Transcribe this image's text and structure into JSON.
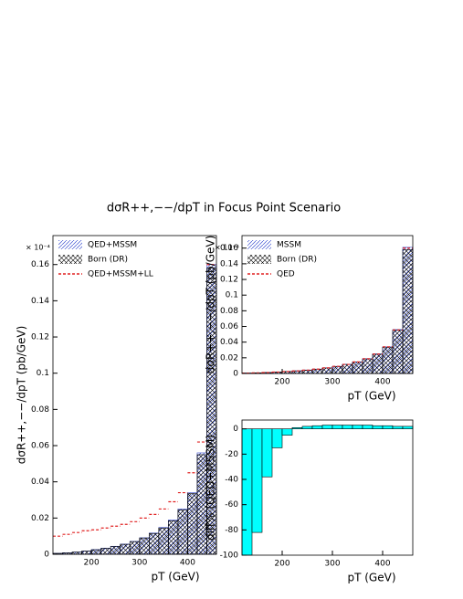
{
  "title": "dσR++,−−/dpT in Focus Point Scenario",
  "chart_data": [
    {
      "type": "histogram",
      "y_label": "dσR++,−−/dpT (pb/GeV)",
      "x_label": "pT (GeV)",
      "exponent_label": "× 10⁻⁴",
      "bins": [
        120,
        140,
        160,
        180,
        200,
        220,
        240,
        260,
        280,
        300,
        320,
        340,
        360,
        380,
        400,
        420,
        440,
        460
      ],
      "xlim": [
        120,
        460
      ],
      "xticks": [
        200,
        300,
        400
      ],
      "ylim": [
        0,
        0.176
      ],
      "yticks": [
        0,
        0.02,
        0.04,
        0.06,
        0.08,
        0.1,
        0.12,
        0.14,
        0.16
      ],
      "series": [
        {
          "name": "QED+MSSM",
          "style": "hatch",
          "color": "#3b4fd0",
          "values": [
            0.0005,
            0.0008,
            0.0012,
            0.0018,
            0.0026,
            0.0034,
            0.0044,
            0.0056,
            0.0071,
            0.0091,
            0.0117,
            0.0148,
            0.0189,
            0.025,
            0.034,
            0.056,
            0.16
          ]
        },
        {
          "name": "Born (DR)",
          "style": "crosshatch",
          "color": "#000000",
          "values": [
            0.0005,
            0.0008,
            0.0012,
            0.0018,
            0.0025,
            0.0033,
            0.0043,
            0.0055,
            0.007,
            0.009,
            0.0115,
            0.0145,
            0.0185,
            0.0245,
            0.0335,
            0.055,
            0.158
          ]
        },
        {
          "name": "QED+MSSM+LL",
          "style": "dashed-line",
          "color": "#e02020",
          "values": [
            0.01,
            0.011,
            0.012,
            0.013,
            0.0135,
            0.0145,
            0.0155,
            0.0165,
            0.018,
            0.02,
            0.022,
            0.025,
            0.029,
            0.034,
            0.045,
            0.062,
            0.16
          ]
        }
      ]
    },
    {
      "type": "histogram",
      "y_label": "dσR++,−−/dpT (pb/GeV)",
      "x_label": "pT (GeV)",
      "exponent_label": "× 10⁻⁴",
      "bins": [
        120,
        140,
        160,
        180,
        200,
        220,
        240,
        260,
        280,
        300,
        320,
        340,
        360,
        380,
        400,
        420,
        440,
        460
      ],
      "xlim": [
        120,
        460
      ],
      "xticks": [
        200,
        300,
        400
      ],
      "ylim": [
        0,
        0.176
      ],
      "yticks": [
        0,
        0.02,
        0.04,
        0.06,
        0.08,
        0.1,
        0.12,
        0.14,
        0.16
      ],
      "series": [
        {
          "name": "MSSM",
          "style": "hatch",
          "color": "#3b4fd0",
          "values": [
            0.0005,
            0.0008,
            0.0012,
            0.0018,
            0.0026,
            0.0034,
            0.0044,
            0.0056,
            0.0071,
            0.0091,
            0.0117,
            0.0148,
            0.0189,
            0.025,
            0.034,
            0.056,
            0.161
          ]
        },
        {
          "name": "Born (DR)",
          "style": "crosshatch",
          "color": "#000000",
          "values": [
            0.0005,
            0.0008,
            0.0012,
            0.0018,
            0.0025,
            0.0033,
            0.0043,
            0.0055,
            0.007,
            0.009,
            0.0115,
            0.0145,
            0.0185,
            0.0245,
            0.0335,
            0.055,
            0.158
          ]
        },
        {
          "name": "QED",
          "style": "dashed-line",
          "color": "#e02020",
          "values": [
            0.0005,
            0.0008,
            0.0012,
            0.0018,
            0.0025,
            0.0033,
            0.0043,
            0.0055,
            0.0071,
            0.0091,
            0.0116,
            0.0147,
            0.0188,
            0.0248,
            0.034,
            0.0556,
            0.16
          ]
        }
      ]
    },
    {
      "type": "histogram",
      "y_label": "diff% (QED+MSSM)",
      "x_label": "pT (GeV)",
      "bins": [
        120,
        140,
        160,
        180,
        200,
        220,
        240,
        260,
        280,
        300,
        320,
        340,
        360,
        380,
        400,
        420,
        440,
        460
      ],
      "xlim": [
        120,
        460
      ],
      "xticks": [
        200,
        300,
        400
      ],
      "ylim": [
        -100,
        7
      ],
      "yticks": [
        -100,
        -80,
        -60,
        -40,
        -20,
        0
      ],
      "series": [
        {
          "style": "fill",
          "color": "#00ffff",
          "values": [
            -100,
            -82,
            -38,
            -15,
            -5,
            1,
            2,
            2.5,
            3,
            3,
            3,
            3,
            3,
            2.5,
            2.5,
            2,
            2
          ]
        }
      ]
    }
  ]
}
